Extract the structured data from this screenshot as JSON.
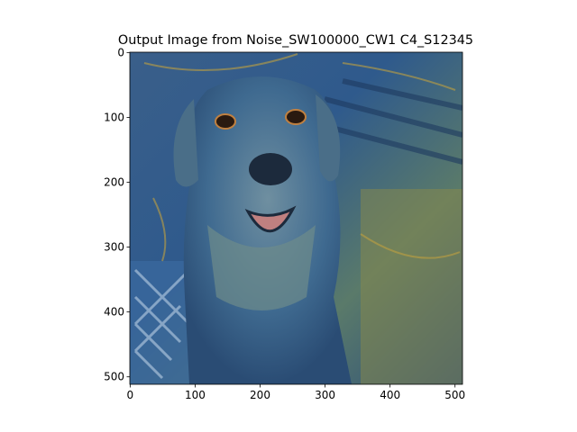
{
  "chart_data": {
    "type": "image",
    "title": "Output Image from Noise_SW100000_CW1 C4_S12345",
    "xlim": [
      -0.5,
      511.5
    ],
    "ylim": [
      511.5,
      -0.5
    ],
    "xticks": [
      0,
      100,
      200,
      300,
      400,
      500
    ],
    "yticks": [
      0,
      100,
      200,
      300,
      400,
      500
    ]
  }
}
